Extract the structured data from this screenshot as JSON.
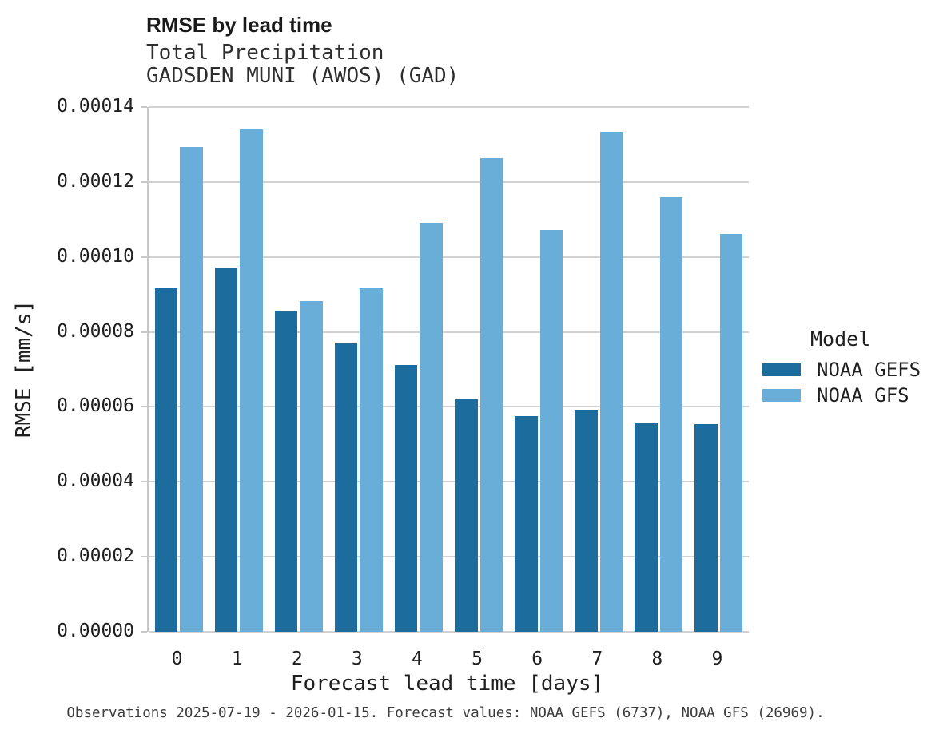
{
  "title": "RMSE by lead time",
  "subtitle_line1": "Total Precipitation",
  "subtitle_line2": "GADSDEN MUNI (AWOS) (GAD)",
  "caption": "Observations 2025-07-19 - 2026-01-15. Forecast values: NOAA GEFS (6737), NOAA GFS (26969).",
  "colors": {
    "gefs": "#1c6d9e",
    "gfs": "#68aed8",
    "grid": "#d1d1d1",
    "axis": "#c8c8c8"
  },
  "legend": {
    "title": "Model",
    "entries": [
      {
        "label": "NOAA GEFS",
        "color": "#1c6d9e"
      },
      {
        "label": "NOAA GFS",
        "color": "#68aed8"
      }
    ]
  },
  "chart_data": {
    "type": "bar",
    "title": "RMSE by lead time",
    "subtitle": [
      "Total Precipitation",
      "GADSDEN MUNI (AWOS) (GAD)"
    ],
    "categories": [
      "0",
      "1",
      "2",
      "3",
      "4",
      "5",
      "6",
      "7",
      "8",
      "9"
    ],
    "series": [
      {
        "name": "NOAA GEFS",
        "color": "#1c6d9e",
        "values": [
          9.16e-05,
          9.72e-05,
          8.56e-05,
          7.71e-05,
          7.12e-05,
          6.2e-05,
          5.76e-05,
          5.93e-05,
          5.59e-05,
          5.54e-05
        ]
      },
      {
        "name": "NOAA GFS",
        "color": "#68aed8",
        "values": [
          0.0001293,
          0.000134,
          8.82e-05,
          9.17e-05,
          0.0001091,
          0.0001264,
          0.0001073,
          0.0001335,
          0.000116,
          0.0001062
        ]
      }
    ],
    "xlabel": "Forecast lead time [days]",
    "ylabel": "RMSE [mm/s]",
    "ylim": [
      0,
      0.00014
    ],
    "ytick_step": 2e-05,
    "ytick_labels": [
      "0.00000",
      "0.00002",
      "0.00004",
      "0.00006",
      "0.00008",
      "0.00010",
      "0.00012",
      "0.00014"
    ],
    "grid": true,
    "legend_position": "right",
    "legend_title": "Model"
  }
}
